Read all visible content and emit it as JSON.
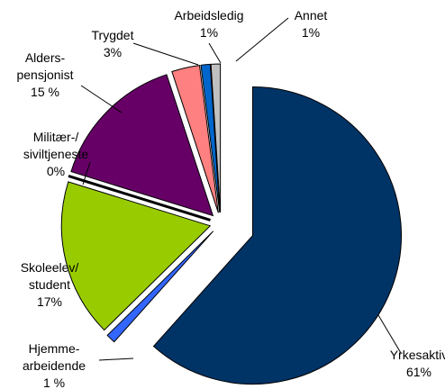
{
  "chart_data": {
    "type": "pie",
    "categories": [
      "Yrkesaktiv",
      "Hjemme-\narbeidende",
      "Skoleelev/\nstudent",
      "Militær-/\nsiviltjeneste",
      "Alders-\npensjonist",
      "Trygdet",
      "Arbeidsledig",
      "Annet"
    ],
    "values": [
      61,
      1,
      17,
      0,
      15,
      3,
      1,
      1
    ],
    "value_labels": [
      "61%",
      "1 %",
      "17%",
      "0%",
      "15 %",
      "3%",
      "1%",
      "1%"
    ],
    "colors": [
      "#003366",
      "#3366ff",
      "#99cc00",
      "#000000",
      "#660066",
      "#ff8080",
      "#0066cc",
      "#c0c0c0"
    ]
  }
}
